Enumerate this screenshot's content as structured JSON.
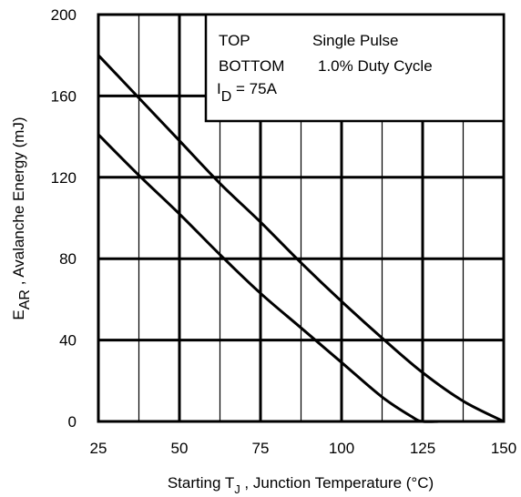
{
  "chart_data": {
    "type": "line",
    "xlabel": {
      "main": "Starting T",
      "sub": "J",
      "rest": " , Junction Temperature (°C)"
    },
    "ylabel": {
      "main": "E",
      "sub": "AR",
      "rest": " , Avalanche Energy (mJ)"
    },
    "xlim": [
      25,
      150
    ],
    "ylim": [
      0,
      200
    ],
    "x_ticks": [
      "25",
      "50",
      "75",
      "100",
      "125",
      "150"
    ],
    "y_ticks": [
      "0",
      "40",
      "80",
      "120",
      "160",
      "200"
    ],
    "grid": true,
    "legend_position": "top-right",
    "legend": {
      "top_label": "TOP",
      "top_value": "Single Pulse",
      "bottom_label": "BOTTOM",
      "bottom_value": "1.0% Duty Cycle",
      "condition_main": "I",
      "condition_sub": "D",
      "condition_rest": " = 75A"
    },
    "series": [
      {
        "x": [
          25,
          37.5,
          50,
          62.5,
          75,
          87.5,
          100,
          112.5,
          125,
          137.5,
          150
        ],
        "y": [
          180,
          159,
          138,
          117,
          98,
          78,
          59,
          41,
          24,
          10,
          0
        ]
      },
      {
        "x": [
          25,
          37.5,
          50,
          62.5,
          75,
          87.5,
          100,
          112.5,
          122,
          125,
          130
        ],
        "y": [
          141,
          121,
          102,
          82,
          63,
          46,
          29,
          12,
          2,
          0,
          0
        ]
      }
    ]
  }
}
